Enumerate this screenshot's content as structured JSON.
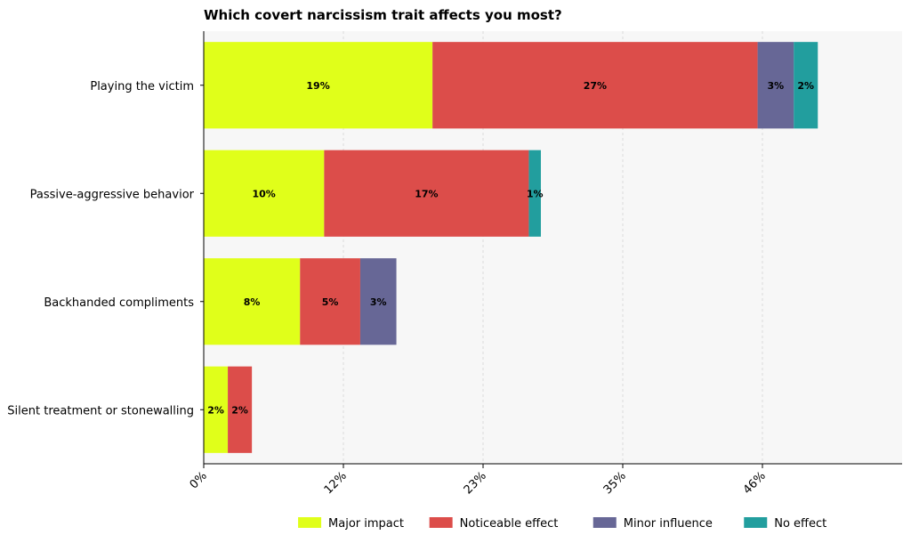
{
  "chart_data": {
    "type": "bar",
    "orientation": "horizontal",
    "stacked": true,
    "title": "Which covert narcissism trait affects you most?",
    "categories": [
      "Playing the victim",
      "Passive-aggressive behavior",
      "Backhanded compliments",
      "Silent treatment or stonewalling"
    ],
    "series": [
      {
        "name": "Major impact",
        "color": "#e0ff1a",
        "values": [
          19,
          10,
          8,
          2
        ],
        "labels": [
          "19%",
          "10%",
          "8%",
          "2%"
        ]
      },
      {
        "name": "Noticeable effect",
        "color": "#dc4d4a",
        "values": [
          27,
          17,
          5,
          2
        ],
        "labels": [
          "27%",
          "17%",
          "5%",
          "2%"
        ]
      },
      {
        "name": "Minor influence",
        "color": "#676796",
        "values": [
          3,
          0,
          3,
          0
        ],
        "labels": [
          "3%",
          "",
          "3%",
          ""
        ]
      },
      {
        "name": "No effect",
        "color": "#229e9e",
        "values": [
          2,
          1,
          0,
          0
        ],
        "labels": [
          "2%",
          "1%",
          "",
          ""
        ]
      }
    ],
    "xlim": [
      0,
      58
    ],
    "xticks": [
      0,
      11.6,
      23.2,
      34.8,
      46.4
    ],
    "xtick_labels": [
      "0%",
      "12%",
      "23%",
      "35%",
      "46%"
    ],
    "grid": "vertical dashed",
    "legend_position": "bottom"
  }
}
